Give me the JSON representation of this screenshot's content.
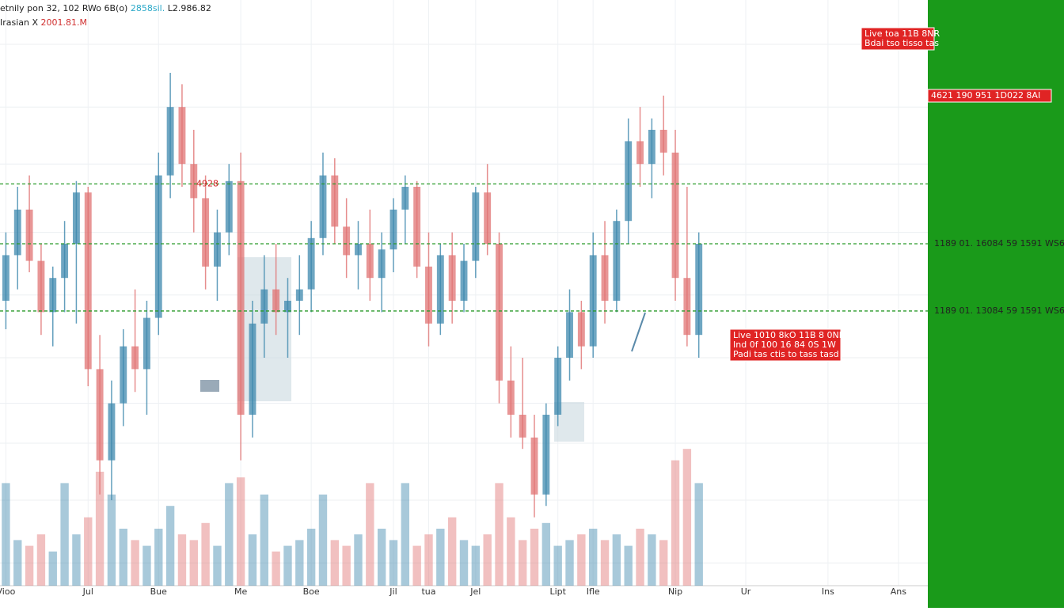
{
  "header": {
    "line1": [
      "etnily pon 32, 102 RWo 6B(o)",
      "2858sil.",
      "L2.986.82"
    ],
    "line2": [
      "Irasian X",
      "2001.81.M"
    ]
  },
  "chart_data": {
    "type": "candlestick",
    "categories": [
      "Vioo",
      null,
      null,
      null,
      null,
      null,
      null,
      "Jul",
      null,
      null,
      null,
      null,
      null,
      "Bue",
      null,
      null,
      null,
      null,
      null,
      null,
      "Me",
      null,
      null,
      null,
      null,
      null,
      "Boe",
      null,
      null,
      null,
      null,
      null,
      null,
      "Jil",
      null,
      null,
      "tua",
      null,
      null,
      null,
      "Jel",
      null,
      null,
      null,
      null,
      null,
      null,
      "Lipt",
      null,
      null,
      "Ifle",
      null,
      null,
      null,
      null,
      null,
      null,
      "Nip",
      null,
      null,
      null,
      null,
      null,
      "Ur",
      null,
      null,
      null,
      null,
      null,
      null,
      "Ins",
      null,
      null,
      null,
      null,
      null,
      "Ans",
      null,
      null
    ],
    "open": [
      50,
      58,
      66,
      57,
      48,
      54,
      60,
      69,
      38,
      22,
      32,
      42,
      38,
      47,
      72,
      84,
      74,
      68,
      56,
      62,
      71,
      30,
      46,
      52,
      48,
      50,
      52,
      61,
      72,
      63,
      58,
      60,
      54,
      59,
      66,
      70,
      56,
      46,
      58,
      50,
      57,
      69,
      60,
      36,
      30,
      26,
      16,
      30,
      40,
      48,
      42,
      58,
      50,
      64,
      78,
      74,
      80,
      76,
      54,
      44,
      null,
      null,
      null,
      null,
      null,
      null,
      null,
      null,
      null,
      null,
      null,
      null,
      null,
      null,
      null,
      null,
      null,
      null,
      null
    ],
    "high": [
      62,
      70,
      72,
      60,
      56,
      64,
      71,
      70,
      44,
      36,
      45,
      52,
      50,
      76,
      90,
      88,
      80,
      72,
      66,
      74,
      76,
      50,
      58,
      60,
      54,
      58,
      64,
      76,
      75,
      68,
      64,
      66,
      62,
      68,
      72,
      71,
      62,
      60,
      62,
      60,
      70,
      74,
      62,
      42,
      40,
      30,
      32,
      42,
      52,
      50,
      62,
      64,
      66,
      82,
      84,
      82,
      86,
      80,
      70,
      62,
      null,
      null,
      null,
      null,
      null,
      null,
      null,
      null,
      null,
      null,
      null,
      null,
      null,
      null,
      null,
      null,
      null,
      null,
      null
    ],
    "low": [
      45,
      52,
      55,
      44,
      42,
      48,
      46,
      35,
      16,
      15,
      28,
      34,
      30,
      44,
      68,
      70,
      62,
      52,
      50,
      58,
      22,
      26,
      40,
      44,
      40,
      44,
      48,
      58,
      60,
      54,
      52,
      50,
      48,
      55,
      60,
      54,
      42,
      44,
      46,
      48,
      54,
      58,
      32,
      26,
      24,
      12,
      14,
      28,
      36,
      38,
      40,
      46,
      48,
      60,
      70,
      68,
      72,
      50,
      42,
      40,
      null,
      null,
      null,
      null,
      null,
      null,
      null,
      null,
      null,
      null,
      null,
      null,
      null,
      null,
      null,
      null,
      null,
      null,
      null
    ],
    "close": [
      58,
      66,
      57,
      48,
      54,
      60,
      69,
      38,
      22,
      32,
      42,
      38,
      47,
      72,
      84,
      74,
      68,
      56,
      62,
      71,
      30,
      46,
      52,
      48,
      50,
      52,
      61,
      72,
      63,
      58,
      60,
      54,
      59,
      66,
      70,
      56,
      46,
      58,
      50,
      57,
      69,
      60,
      36,
      30,
      26,
      16,
      30,
      40,
      48,
      42,
      58,
      50,
      64,
      78,
      74,
      80,
      76,
      54,
      44,
      60,
      null,
      null,
      null,
      null,
      null,
      null,
      null,
      null,
      null,
      null,
      null,
      null,
      null,
      null,
      null,
      null,
      null,
      null,
      null
    ],
    "volume": [
      18,
      8,
      7,
      9,
      6,
      18,
      9,
      12,
      20,
      16,
      10,
      8,
      7,
      10,
      14,
      9,
      8,
      11,
      7,
      18,
      19,
      9,
      16,
      6,
      7,
      8,
      10,
      16,
      8,
      7,
      9,
      18,
      10,
      8,
      18,
      7,
      9,
      10,
      12,
      8,
      7,
      9,
      18,
      12,
      8,
      10,
      11,
      7,
      8,
      9,
      10,
      8,
      9,
      7,
      10,
      9,
      8,
      22,
      24,
      18,
      null,
      null,
      null,
      null,
      null,
      null,
      null,
      null,
      null,
      null,
      null,
      null,
      null,
      null,
      null,
      null,
      null,
      null,
      null
    ],
    "up_color": "#3d88ad",
    "down_color": "#e07373",
    "ylim": [
      0,
      100
    ],
    "y2lim": [
      0,
      100
    ],
    "yticks": [
      95,
      84,
      74,
      62,
      51,
      40,
      32,
      25,
      15,
      4
    ],
    "grid": true,
    "levels": [
      {
        "value": 70.5,
        "label": "4928"
      },
      {
        "value": 60,
        "label": "1189 01. 16084 59 1591 WS6"
      },
      {
        "value": 48.2,
        "label": "1189 01. 13084 59 1591 WS6"
      }
    ],
    "level_color": "#2a9a2a",
    "annotations": [
      {
        "lines": [
          "Live toa 11B 8NR",
          "Bdai tso tisso tas"
        ]
      },
      {
        "lines": [
          "4621 190 951 1D022 8AI"
        ]
      },
      {
        "lines": [
          "Live 1010 8kO 11B 8 0NR",
          "Ind 0f 100 16 84 0S 1W",
          "Padi tas ctis to tass tasd"
        ]
      }
    ]
  }
}
